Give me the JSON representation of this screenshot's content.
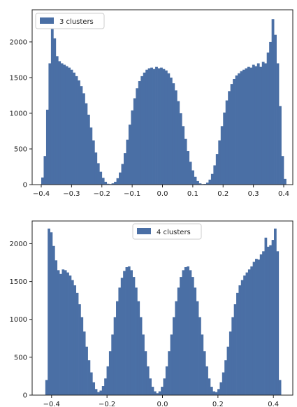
{
  "chart_data": [
    {
      "type": "bar",
      "legend_location": "upper-left",
      "grid": false,
      "xlim": [
        -0.43,
        0.43
      ],
      "ylim": [
        0,
        2450
      ],
      "xticks": [
        -0.4,
        -0.3,
        -0.2,
        -0.1,
        0.0,
        0.1,
        0.2,
        0.3,
        0.4
      ],
      "xtick_labels": [
        "−0.4",
        "−0.3",
        "−0.2",
        "−0.1",
        "0.0",
        "0.1",
        "0.2",
        "0.3",
        "0.4"
      ],
      "yticks": [
        0,
        500,
        1000,
        1500,
        2000
      ],
      "ytick_labels": [
        "0",
        "500",
        "1000",
        "1500",
        "2000"
      ],
      "bin_width": 0.008,
      "series": [
        {
          "name": "3 clusters",
          "color": "#4a6fa5",
          "points": [
            [
              -0.4,
              100
            ],
            [
              -0.392,
              400
            ],
            [
              -0.384,
              1050
            ],
            [
              -0.376,
              1700
            ],
            [
              -0.368,
              2180
            ],
            [
              -0.36,
              2050
            ],
            [
              -0.352,
              1800
            ],
            [
              -0.344,
              1730
            ],
            [
              -0.336,
              1700
            ],
            [
              -0.328,
              1680
            ],
            [
              -0.32,
              1660
            ],
            [
              -0.312,
              1640
            ],
            [
              -0.304,
              1610
            ],
            [
              -0.296,
              1570
            ],
            [
              -0.288,
              1520
            ],
            [
              -0.28,
              1460
            ],
            [
              -0.272,
              1380
            ],
            [
              -0.264,
              1280
            ],
            [
              -0.256,
              1140
            ],
            [
              -0.248,
              980
            ],
            [
              -0.24,
              800
            ],
            [
              -0.232,
              620
            ],
            [
              -0.224,
              450
            ],
            [
              -0.216,
              300
            ],
            [
              -0.208,
              180
            ],
            [
              -0.2,
              95
            ],
            [
              -0.192,
              40
            ],
            [
              -0.184,
              12
            ],
            [
              -0.176,
              8
            ],
            [
              -0.168,
              18
            ],
            [
              -0.16,
              40
            ],
            [
              -0.152,
              90
            ],
            [
              -0.144,
              170
            ],
            [
              -0.136,
              290
            ],
            [
              -0.128,
              440
            ],
            [
              -0.12,
              630
            ],
            [
              -0.112,
              840
            ],
            [
              -0.104,
              1040
            ],
            [
              -0.096,
              1210
            ],
            [
              -0.088,
              1350
            ],
            [
              -0.08,
              1450
            ],
            [
              -0.072,
              1520
            ],
            [
              -0.064,
              1570
            ],
            [
              -0.056,
              1610
            ],
            [
              -0.048,
              1630
            ],
            [
              -0.04,
              1640
            ],
            [
              -0.032,
              1620
            ],
            [
              -0.024,
              1650
            ],
            [
              -0.016,
              1630
            ],
            [
              -0.008,
              1640
            ],
            [
              0.0,
              1620
            ],
            [
              0.008,
              1600
            ],
            [
              0.016,
              1560
            ],
            [
              0.024,
              1500
            ],
            [
              0.032,
              1420
            ],
            [
              0.04,
              1320
            ],
            [
              0.048,
              1170
            ],
            [
              0.056,
              1000
            ],
            [
              0.064,
              820
            ],
            [
              0.072,
              640
            ],
            [
              0.08,
              470
            ],
            [
              0.088,
              320
            ],
            [
              0.096,
              200
            ],
            [
              0.104,
              110
            ],
            [
              0.112,
              50
            ],
            [
              0.12,
              18
            ],
            [
              0.128,
              8
            ],
            [
              0.136,
              10
            ],
            [
              0.144,
              28
            ],
            [
              0.152,
              70
            ],
            [
              0.16,
              150
            ],
            [
              0.168,
              270
            ],
            [
              0.176,
              430
            ],
            [
              0.184,
              620
            ],
            [
              0.192,
              820
            ],
            [
              0.2,
              1010
            ],
            [
              0.208,
              1180
            ],
            [
              0.216,
              1310
            ],
            [
              0.224,
              1410
            ],
            [
              0.232,
              1480
            ],
            [
              0.24,
              1530
            ],
            [
              0.248,
              1560
            ],
            [
              0.256,
              1590
            ],
            [
              0.264,
              1610
            ],
            [
              0.272,
              1630
            ],
            [
              0.28,
              1650
            ],
            [
              0.288,
              1640
            ],
            [
              0.296,
              1680
            ],
            [
              0.304,
              1660
            ],
            [
              0.312,
              1700
            ],
            [
              0.32,
              1650
            ],
            [
              0.328,
              1720
            ],
            [
              0.336,
              1700
            ],
            [
              0.344,
              1850
            ],
            [
              0.352,
              2000
            ],
            [
              0.36,
              2320
            ],
            [
              0.368,
              2100
            ],
            [
              0.376,
              1700
            ],
            [
              0.384,
              1100
            ],
            [
              0.392,
              400
            ],
            [
              0.4,
              80
            ]
          ]
        }
      ]
    },
    {
      "type": "bar",
      "legend_location": "upper-center",
      "grid": false,
      "xlim": [
        -0.47,
        0.47
      ],
      "ylim": [
        0,
        2300
      ],
      "xticks": [
        -0.4,
        -0.2,
        0.0,
        0.2,
        0.4
      ],
      "xtick_labels": [
        "−0.4",
        "−0.2",
        "0.0",
        "0.2",
        "0.4"
      ],
      "yticks": [
        0,
        500,
        1000,
        1500,
        2000
      ],
      "ytick_labels": [
        "0",
        "500",
        "1000",
        "1500",
        "2000"
      ],
      "bin_width": 0.0085,
      "series": [
        {
          "name": "4 clusters",
          "color": "#4a6fa5",
          "points": [
            [
              -0.4225,
              200
            ],
            [
              -0.414,
              2200
            ],
            [
              -0.4055,
              2150
            ],
            [
              -0.397,
              1970
            ],
            [
              -0.3885,
              1780
            ],
            [
              -0.38,
              1650
            ],
            [
              -0.3715,
              1600
            ],
            [
              -0.363,
              1660
            ],
            [
              -0.3545,
              1650
            ],
            [
              -0.346,
              1620
            ],
            [
              -0.3375,
              1580
            ],
            [
              -0.329,
              1520
            ],
            [
              -0.3205,
              1450
            ],
            [
              -0.312,
              1350
            ],
            [
              -0.3035,
              1200
            ],
            [
              -0.295,
              1030
            ],
            [
              -0.2865,
              840
            ],
            [
              -0.278,
              640
            ],
            [
              -0.2695,
              460
            ],
            [
              -0.261,
              300
            ],
            [
              -0.2525,
              170
            ],
            [
              -0.244,
              80
            ],
            [
              -0.2355,
              40
            ],
            [
              -0.227,
              60
            ],
            [
              -0.2185,
              120
            ],
            [
              -0.21,
              220
            ],
            [
              -0.2015,
              380
            ],
            [
              -0.193,
              580
            ],
            [
              -0.1845,
              800
            ],
            [
              -0.176,
              1030
            ],
            [
              -0.1675,
              1240
            ],
            [
              -0.159,
              1420
            ],
            [
              -0.1505,
              1550
            ],
            [
              -0.142,
              1640
            ],
            [
              -0.1335,
              1690
            ],
            [
              -0.125,
              1700
            ],
            [
              -0.1165,
              1650
            ],
            [
              -0.108,
              1560
            ],
            [
              -0.0995,
              1420
            ],
            [
              -0.091,
              1240
            ],
            [
              -0.0825,
              1030
            ],
            [
              -0.074,
              800
            ],
            [
              -0.0655,
              580
            ],
            [
              -0.057,
              380
            ],
            [
              -0.0485,
              220
            ],
            [
              -0.04,
              110
            ],
            [
              -0.0315,
              50
            ],
            [
              -0.023,
              25
            ],
            [
              -0.0145,
              50
            ],
            [
              -0.006,
              110
            ],
            [
              0.0025,
              220
            ],
            [
              0.011,
              380
            ],
            [
              0.0195,
              580
            ],
            [
              0.028,
              800
            ],
            [
              0.0365,
              1030
            ],
            [
              0.045,
              1240
            ],
            [
              0.0535,
              1420
            ],
            [
              0.062,
              1560
            ],
            [
              0.0705,
              1650
            ],
            [
              0.079,
              1690
            ],
            [
              0.0875,
              1700
            ],
            [
              0.096,
              1650
            ],
            [
              0.1045,
              1560
            ],
            [
              0.113,
              1420
            ],
            [
              0.1215,
              1240
            ],
            [
              0.13,
              1030
            ],
            [
              0.1385,
              800
            ],
            [
              0.147,
              580
            ],
            [
              0.1555,
              380
            ],
            [
              0.164,
              220
            ],
            [
              0.1725,
              110
            ],
            [
              0.181,
              50
            ],
            [
              0.1895,
              40
            ],
            [
              0.198,
              80
            ],
            [
              0.2065,
              170
            ],
            [
              0.215,
              300
            ],
            [
              0.2235,
              460
            ],
            [
              0.232,
              640
            ],
            [
              0.2405,
              840
            ],
            [
              0.249,
              1030
            ],
            [
              0.2575,
              1200
            ],
            [
              0.266,
              1350
            ],
            [
              0.2745,
              1450
            ],
            [
              0.283,
              1520
            ],
            [
              0.2915,
              1580
            ],
            [
              0.3,
              1620
            ],
            [
              0.3085,
              1660
            ],
            [
              0.317,
              1700
            ],
            [
              0.3255,
              1760
            ],
            [
              0.334,
              1800
            ],
            [
              0.3425,
              1790
            ],
            [
              0.351,
              1860
            ],
            [
              0.3595,
              1900
            ],
            [
              0.368,
              2080
            ],
            [
              0.3765,
              1960
            ],
            [
              0.385,
              1980
            ],
            [
              0.3935,
              2050
            ],
            [
              0.402,
              2200
            ],
            [
              0.4105,
              1900
            ],
            [
              0.419,
              200
            ]
          ]
        }
      ]
    }
  ]
}
